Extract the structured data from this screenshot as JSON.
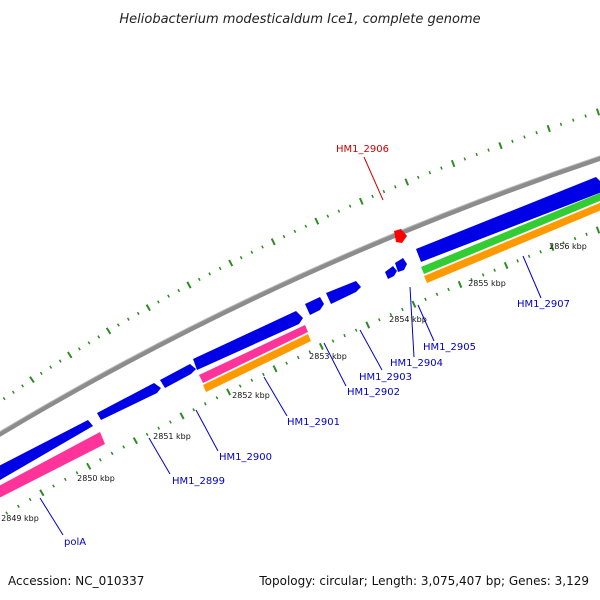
{
  "title": "Heliobacterium modesticaldum Ice1, complete genome",
  "footer": {
    "accession": "Accession: NC_010337",
    "topology": "Topology: circular; Length: 3,075,407 bp; Genes: 3,129"
  },
  "kbp_labels": [
    "2849 kbp",
    "2850 kbp",
    "2851 kbp",
    "2852 kbp",
    "2853 kbp",
    "2854 kbp",
    "2855 kbp",
    "2856 kbp"
  ],
  "gene_labels": [
    {
      "text": "polA",
      "color": "#0000cc"
    },
    {
      "text": "HM1_2899",
      "color": "#0000cc"
    },
    {
      "text": "HM1_2900",
      "color": "#0000cc"
    },
    {
      "text": "HM1_2901",
      "color": "#0000cc"
    },
    {
      "text": "HM1_2902",
      "color": "#0000cc"
    },
    {
      "text": "HM1_2903",
      "color": "#0000cc"
    },
    {
      "text": "HM1_2904",
      "color": "#0000cc"
    },
    {
      "text": "HM1_2905",
      "color": "#0000cc"
    },
    {
      "text": "HM1_2906",
      "color": "#cc0000"
    },
    {
      "text": "HM1_2907",
      "color": "#0000cc"
    }
  ],
  "colors": {
    "backbone": "#8c8c8c",
    "gene": "#0000e6",
    "gene_highlight": "#ff0000",
    "pink": "#ff3399",
    "orange": "#ff9900",
    "green": "#33cc33",
    "tick": "#2e8b22"
  }
}
